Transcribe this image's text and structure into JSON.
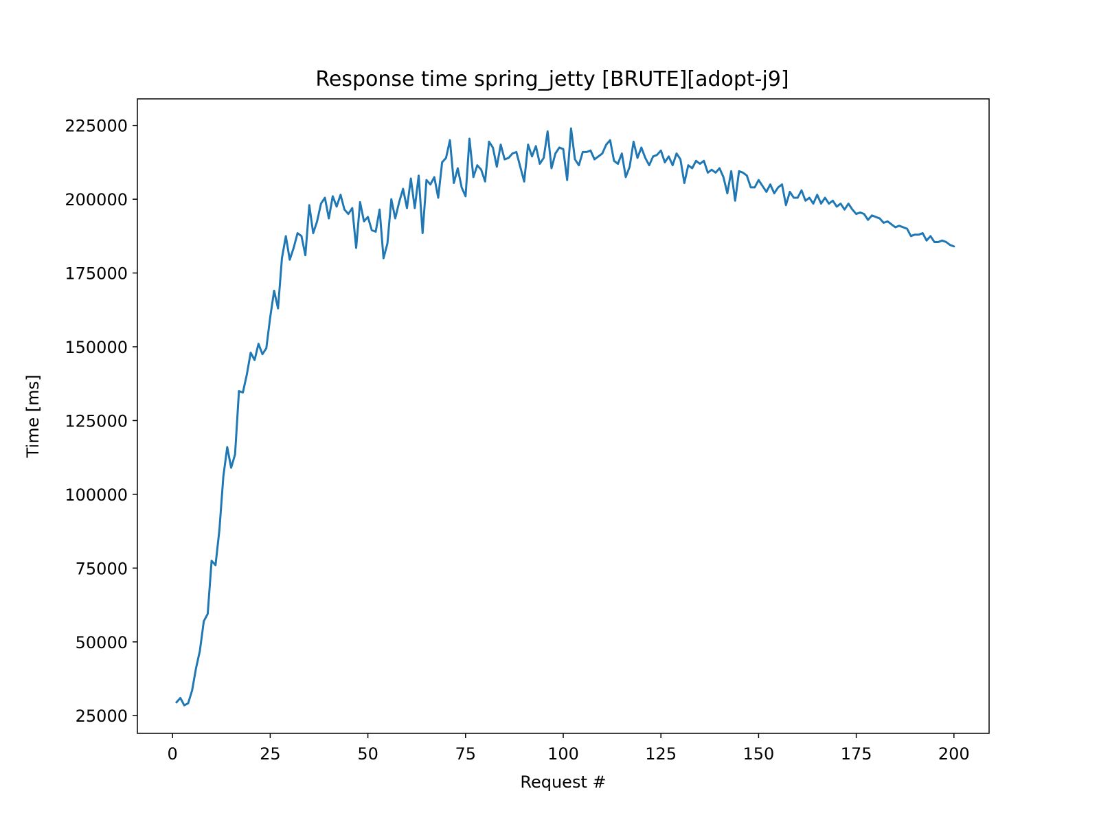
{
  "chart_data": {
    "type": "line",
    "title": "Response time spring_jetty [BRUTE][adopt-j9]",
    "xlabel": "Request #",
    "ylabel": "Time [ms]",
    "xlim": [
      -9,
      209
    ],
    "ylim": [
      19000,
      234000
    ],
    "xticks": [
      0,
      25,
      50,
      75,
      100,
      125,
      150,
      175,
      200
    ],
    "yticks": [
      25000,
      50000,
      75000,
      100000,
      125000,
      150000,
      175000,
      200000,
      225000
    ],
    "grid": false,
    "color": "#1f77b4",
    "series": [
      {
        "x_start": 1,
        "values": [
          29500,
          31000,
          28500,
          29200,
          33500,
          41000,
          47000,
          57000,
          59500,
          77500,
          76000,
          88000,
          106000,
          116000,
          109000,
          113500,
          135000,
          134500,
          140500,
          148000,
          145500,
          151000,
          147500,
          149500,
          160000,
          169000,
          163000,
          180000,
          187500,
          179500,
          183500,
          188500,
          187500,
          181000,
          198000,
          188500,
          192500,
          198500,
          200500,
          193500,
          201000,
          197500,
          201500,
          196500,
          195000,
          197000,
          183500,
          199000,
          192500,
          194000,
          189500,
          189000,
          196500,
          180000,
          185000,
          200000,
          193500,
          199000,
          203500,
          197000,
          207000,
          197000,
          208000,
          188500,
          206500,
          205000,
          207500,
          200500,
          212500,
          214000,
          220000,
          205500,
          210500,
          204000,
          201000,
          220500,
          207500,
          211500,
          210000,
          206000,
          219500,
          217500,
          211000,
          218500,
          213500,
          214000,
          215500,
          216000,
          211000,
          206000,
          218500,
          214500,
          218000,
          212000,
          214000,
          223000,
          210500,
          215500,
          217500,
          217000,
          206500,
          224000,
          213500,
          211500,
          216000,
          216000,
          216500,
          213500,
          214500,
          215500,
          218500,
          220000,
          213000,
          212000,
          215500,
          207500,
          211000,
          219500,
          214000,
          217500,
          214000,
          211500,
          214500,
          215000,
          216500,
          212500,
          214500,
          211500,
          215500,
          213500,
          205500,
          211500,
          210500,
          213000,
          212000,
          213000,
          209000,
          210000,
          209000,
          210500,
          207500,
          202000,
          209500,
          199500,
          209500,
          209000,
          208000,
          204000,
          204000,
          206500,
          204500,
          202500,
          205000,
          202000,
          204000,
          205000,
          198000,
          202500,
          200500,
          200500,
          203000,
          199500,
          200500,
          198500,
          201500,
          198500,
          200500,
          198500,
          199500,
          197500,
          198500,
          196500,
          198500,
          196500,
          195000,
          195500,
          195000,
          193000,
          194500,
          194000,
          193500,
          192000,
          192500,
          191500,
          190500,
          191000,
          190500,
          190000,
          187500,
          188000,
          188000,
          188500,
          186000,
          187500,
          185500,
          185500,
          186000,
          185500,
          184500,
          184000
        ]
      }
    ]
  }
}
